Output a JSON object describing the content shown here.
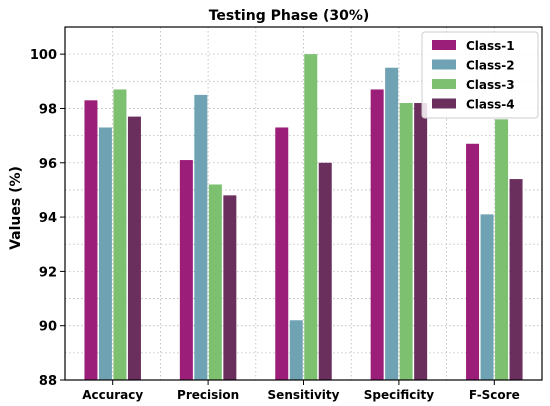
{
  "chart_data": {
    "type": "bar",
    "title": "Testing Phase (30%)",
    "xlabel": "",
    "ylabel": "Values (%)",
    "ylim": [
      88,
      101
    ],
    "yticks": [
      "88",
      "90",
      "92",
      "94",
      "96",
      "98",
      "100"
    ],
    "grid": true,
    "legend_position": "top-right",
    "categories": [
      "Accuracy",
      "Precision",
      "Sensitivity",
      "Specificity",
      "F-Score"
    ],
    "series": [
      {
        "name": "Class-1",
        "color": "#9b1f78",
        "values": [
          98.3,
          96.1,
          97.3,
          98.7,
          96.7
        ]
      },
      {
        "name": "Class-2",
        "color": "#6fa3b3",
        "values": [
          97.3,
          98.5,
          90.2,
          99.5,
          94.1
        ]
      },
      {
        "name": "Class-3",
        "color": "#7cc070",
        "values": [
          98.7,
          95.2,
          100.0,
          98.2,
          97.6
        ]
      },
      {
        "name": "Class-4",
        "color": "#6b2f5e",
        "values": [
          97.7,
          94.8,
          96.0,
          98.2,
          95.4
        ]
      }
    ]
  }
}
